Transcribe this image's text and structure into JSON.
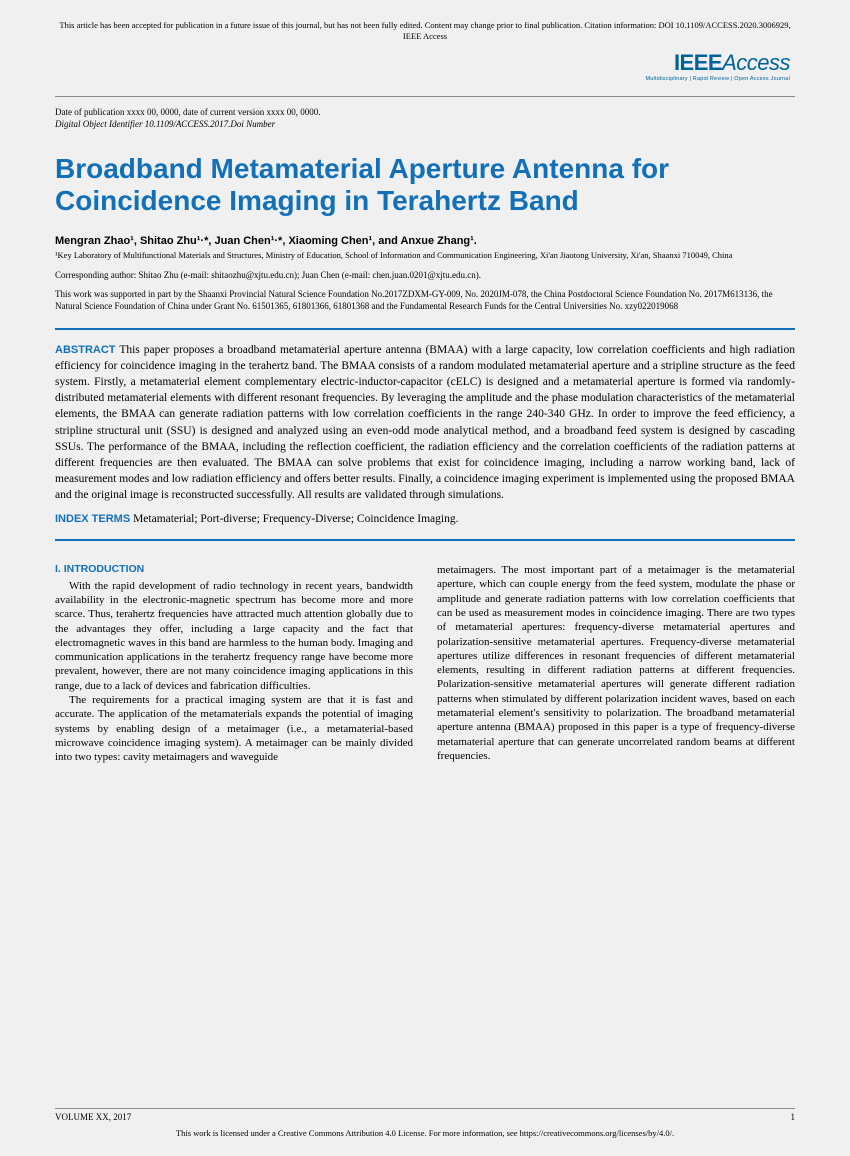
{
  "header_notice": "This article has been accepted for publication in a future issue of this journal, but has not been fully edited. Content may change prior to final publication. Citation information: DOI 10.1109/ACCESS.2020.3006929, IEEE Access",
  "logo": {
    "brand": "IEEE",
    "product": "Access",
    "tagline": "Multidisciplinary | Rapid Review | Open Access Journal"
  },
  "pub_date": "Date of publication xxxx 00, 0000, date of current version xxxx 00, 0000.",
  "doi": "Digital Object Identifier 10.1109/ACCESS.2017.Doi Number",
  "title": "Broadband Metamaterial Aperture Antenna for Coincidence Imaging in Terahertz Band",
  "authors_html": "Mengran Zhao¹, Shitao Zhu¹·*, Juan Chen¹·*, Xiaoming Chen¹, and Anxue Zhang¹.",
  "affiliation": "¹Key Laboratory of Multifunctional Materials and Structures, Ministry of Education, School of Information and Communication Engineering, Xi'an Jiaotong University, Xi'an, Shaanxi 710049, China",
  "corresponding": "Corresponding author: Shitao Zhu (e-mail: shitaozhu@xjtu.edu.cn); Juan Chen (e-mail: chen.juan.0201@xjtu.edu.cn).",
  "funding": "This work was supported in part by the Shaanxi Provincial Natural Science Foundation No.2017ZDXM-GY-009, No. 2020JM-078, the China Postdoctoral Science Foundation No. 2017M613136, the Natural Science Foundation of China under Grant No. 61501365, 61801366, 61801368 and the Fundamental Research Funds for the Central Universities No. xzy022019068",
  "abstract_label": "ABSTRACT",
  "abstract": "This paper proposes a broadband metamaterial aperture antenna (BMAA) with a large capacity, low correlation coefficients and high radiation efficiency for coincidence imaging in the terahertz band. The BMAA consists of a random modulated metamaterial aperture and a stripline structure as the feed system. Firstly, a metamaterial element complementary electric-inductor-capacitor (cELC) is designed and a metamaterial aperture is formed via randomly-distributed metamaterial elements with different resonant frequencies. By leveraging the amplitude and the phase modulation characteristics of the metamaterial elements, the BMAA can generate radiation patterns with low correlation coefficients in the range 240-340 GHz. In order to improve the feed efficiency, a stripline structural unit (SSU) is designed and analyzed using an even-odd mode analytical method, and a broadband feed system is designed by cascading SSUs. The performance of the BMAA, including the reflection coefficient, the radiation efficiency and the correlation coefficients of the radiation patterns at different frequencies are then evaluated. The BMAA can solve problems that exist for coincidence imaging, including a narrow working band, lack of measurement modes and low radiation efficiency and offers better results. Finally, a coincidence imaging experiment is implemented using the proposed BMAA and the original image is reconstructed successfully. All results are validated through simulations.",
  "index_label": "INDEX TERMS",
  "index_terms": "Metamaterial; Port-diverse; Frequency-Diverse; Coincidence Imaging.",
  "section_heading": "I.  INTRODUCTION",
  "col1_p1": "With the rapid development of radio technology in recent years, bandwidth availability in the electronic-magnetic spectrum has become more and more scarce. Thus, terahertz frequencies have attracted much attention globally due to the advantages they offer, including a large capacity and the fact that electromagnetic waves in this band are harmless to the human body. Imaging and communication applications in the terahertz frequency range have become more prevalent, however, there are not many coincidence imaging applications in this range, due to a lack of devices and fabrication difficulties.",
  "col1_p2": "The requirements for a practical imaging system are that it is fast and accurate. The application of the metamaterials expands the potential of imaging systems by enabling design of a metaimager (i.e., a metamaterial-based microwave coincidence imaging system). A metaimager can be mainly divided into two types: cavity metaimagers and waveguide",
  "col2_p1": "metaimagers. The most important part of a metaimager is the metamaterial aperture, which can couple energy from the feed system, modulate the phase or amplitude and generate radiation patterns with low correlation coefficients that can be used as measurement modes in coincidence imaging. There are two types of metamaterial apertures: frequency-diverse metamaterial apertures and polarization-sensitive metamaterial apertures. Frequency-diverse metamaterial apertures utilize differences in resonant frequencies of different metamaterial elements, resulting in different radiation patterns at different frequencies. Polarization-sensitive metamaterial apertures will generate different radiation patterns when stimulated by different polarization incident waves, based on each metamaterial element's sensitivity to polarization. The broadband metamaterial aperture antenna (BMAA) proposed in this paper is a type of frequency-diverse metamaterial aperture that can generate uncorrelated random beams at different frequencies.",
  "footer_volume": "VOLUME XX, 2017",
  "footer_page": "1",
  "license": "This work is licensed under a Creative Commons Attribution 4.0 License. For more information, see https://creativecommons.org/licenses/by/4.0/."
}
